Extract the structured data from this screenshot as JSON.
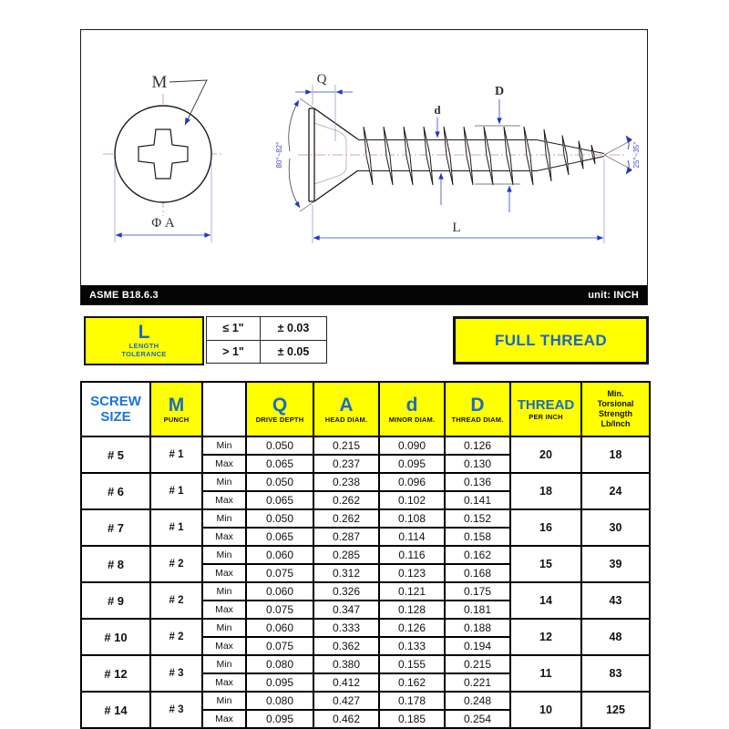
{
  "drawing": {
    "labels": {
      "recess": "M",
      "head_diameter": "Φ A",
      "drive_depth": "Q",
      "minor_diameter": "d",
      "thread_diameter": "D",
      "length": "L",
      "head_angle": "80°~82°",
      "tip_angle": "25°~35°"
    },
    "title_bar": {
      "standard": "ASME B18.6.3",
      "unit": "unit: INCH"
    }
  },
  "tolerance_box": {
    "letter": "L",
    "caption_line1": "LENGTH",
    "caption_line2": "TOLERANCE",
    "rows": [
      {
        "condition": "≤ 1\"",
        "value": "± 0.03"
      },
      {
        "condition": "> 1\"",
        "value": "± 0.05"
      }
    ]
  },
  "full_thread_label": "FULL THREAD",
  "table": {
    "min_label": "Min",
    "max_label": "Max",
    "headers": {
      "screw_size": "SCREW SIZE",
      "punch_letter": "M",
      "punch_caption": "PUNCH",
      "q_letter": "Q",
      "q_caption": "DRIVE DEPTH",
      "a_letter": "A",
      "a_caption": "HEAD DIAM.",
      "d_letter": "d",
      "d_caption": "MINOR DIAM.",
      "dd_letter": "D",
      "dd_caption": "THREAD DIAM.",
      "thread_letter": "THREAD",
      "thread_caption": "PER INCH",
      "strength_lines": [
        "Min.",
        "Torsional",
        "Strength",
        "Lb/Inch"
      ]
    },
    "rows": [
      {
        "size": "# 5",
        "punch": "# 1",
        "min": [
          "0.050",
          "0.215",
          "0.090",
          "0.126"
        ],
        "max": [
          "0.065",
          "0.237",
          "0.095",
          "0.130"
        ],
        "tpi": "20",
        "strength": "18"
      },
      {
        "size": "# 6",
        "punch": "# 1",
        "min": [
          "0.050",
          "0.238",
          "0.096",
          "0.136"
        ],
        "max": [
          "0.065",
          "0.262",
          "0.102",
          "0.141"
        ],
        "tpi": "18",
        "strength": "24"
      },
      {
        "size": "# 7",
        "punch": "# 1",
        "min": [
          "0.050",
          "0.262",
          "0.108",
          "0.152"
        ],
        "max": [
          "0.065",
          "0.287",
          "0.114",
          "0.158"
        ],
        "tpi": "16",
        "strength": "30"
      },
      {
        "size": "# 8",
        "punch": "# 2",
        "min": [
          "0.060",
          "0.285",
          "0.116",
          "0.162"
        ],
        "max": [
          "0.075",
          "0.312",
          "0.123",
          "0.168"
        ],
        "tpi": "15",
        "strength": "39"
      },
      {
        "size": "# 9",
        "punch": "# 2",
        "min": [
          "0.060",
          "0.326",
          "0.121",
          "0.175"
        ],
        "max": [
          "0.075",
          "0.347",
          "0.128",
          "0.181"
        ],
        "tpi": "14",
        "strength": "43"
      },
      {
        "size": "# 10",
        "punch": "# 2",
        "min": [
          "0.060",
          "0.333",
          "0.126",
          "0.188"
        ],
        "max": [
          "0.075",
          "0.362",
          "0.133",
          "0.194"
        ],
        "tpi": "12",
        "strength": "48"
      },
      {
        "size": "# 12",
        "punch": "# 3",
        "min": [
          "0.080",
          "0.380",
          "0.155",
          "0.215"
        ],
        "max": [
          "0.095",
          "0.412",
          "0.162",
          "0.221"
        ],
        "tpi": "11",
        "strength": "83"
      },
      {
        "size": "# 14",
        "punch": "# 3",
        "min": [
          "0.080",
          "0.427",
          "0.178",
          "0.248"
        ],
        "max": [
          "0.095",
          "0.462",
          "0.185",
          "0.254"
        ],
        "tpi": "10",
        "strength": "125"
      }
    ]
  },
  "colors": {
    "accent_yellow": "#ffff00",
    "accent_blue": "#1b6cc6",
    "arrow_blue": "#2233cc",
    "centerline_red": "#cc8888",
    "bar_black": "#050505"
  }
}
